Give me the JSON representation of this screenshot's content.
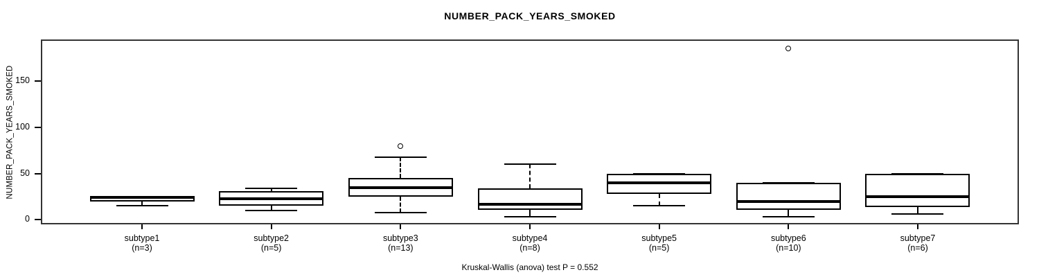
{
  "chart_data": {
    "type": "boxplot",
    "title": "NUMBER_PACK_YEARS_SMOKED",
    "ylabel": "NUMBER_PACK_YEARS_SMOKED",
    "annotation": "Kruskal-Wallis (anova) test P = 0.552",
    "yticks": [
      0,
      50,
      100,
      150
    ],
    "ylim": [
      -5,
      195
    ],
    "grid": false,
    "legend": "none",
    "groups": [
      {
        "label": "subtype1",
        "n": 3,
        "n_label": "(n=3)",
        "whisker_low": 15,
        "q1": 19.5,
        "median": 24,
        "q3": 25,
        "whisker_high": 25,
        "outliers": []
      },
      {
        "label": "subtype2",
        "n": 5,
        "n_label": "(n=5)",
        "whisker_low": 10,
        "q1": 15,
        "median": 23,
        "q3": 31,
        "whisker_high": 34,
        "outliers": []
      },
      {
        "label": "subtype3",
        "n": 13,
        "n_label": "(n=13)",
        "whisker_low": 8,
        "q1": 25,
        "median": 35,
        "q3": 45,
        "whisker_high": 68,
        "outliers": [
          80
        ]
      },
      {
        "label": "subtype4",
        "n": 8,
        "n_label": "(n=8)",
        "whisker_low": 3,
        "q1": 10.5,
        "median": 17,
        "q3": 34,
        "whisker_high": 60,
        "outliers": []
      },
      {
        "label": "subtype5",
        "n": 5,
        "n_label": "(n=5)",
        "whisker_low": 15,
        "q1": 28,
        "median": 40,
        "q3": 50,
        "whisker_high": 50,
        "outliers": []
      },
      {
        "label": "subtype6",
        "n": 10,
        "n_label": "(n=10)",
        "whisker_low": 3,
        "q1": 10.5,
        "median": 19.5,
        "q3": 40,
        "whisker_high": 40,
        "outliers": [
          185
        ]
      },
      {
        "label": "subtype7",
        "n": 6,
        "n_label": "(n=6)",
        "whisker_low": 6,
        "q1": 14,
        "median": 25,
        "q3": 50,
        "whisker_high": 50,
        "outliers": []
      }
    ],
    "colors": {
      "line": "#000000",
      "frame": "#333333",
      "background": "#ffffff"
    }
  }
}
